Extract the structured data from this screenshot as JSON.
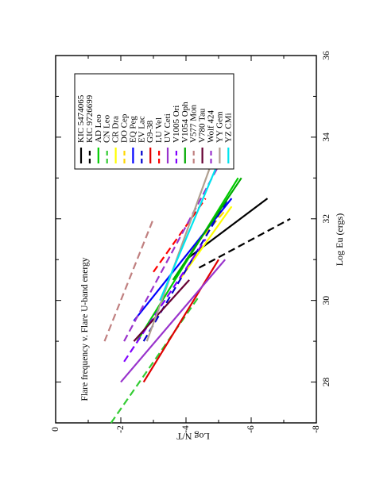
{
  "chart_data": {
    "type": "line",
    "title": "Flare frequency v. Flare U-band energy",
    "xlabel": "Log Eu (ergs)",
    "ylabel": "Log N/T",
    "xlim": [
      27,
      36
    ],
    "ylim": [
      -8,
      0
    ],
    "x_ticks": [
      "28",
      "30",
      "32",
      "34",
      "36"
    ],
    "y_ticks": [
      "0",
      "-2",
      "-4",
      "-6",
      "-8"
    ],
    "orientation": "rotated-90-ccw",
    "legend_position": "top-right",
    "grid": false,
    "series": [
      {
        "name": "KIC 5474065",
        "color": "#000000",
        "dash": "solid",
        "x": [
          31.0,
          32.5
        ],
        "y": [
          -4.0,
          -6.5
        ]
      },
      {
        "name": "KIC 9726699",
        "color": "#000000",
        "dash": "dashed",
        "x": [
          30.8,
          32.0
        ],
        "y": [
          -4.4,
          -7.2
        ]
      },
      {
        "name": "AD Leo",
        "color": "#00cc00",
        "dash": "solid",
        "x": [
          29.0,
          33.0
        ],
        "y": [
          -2.5,
          -5.6
        ]
      },
      {
        "name": "CN Leo",
        "color": "#33cc33",
        "dash": "dashed",
        "x": [
          27.0,
          30.1
        ],
        "y": [
          -1.7,
          -4.4
        ]
      },
      {
        "name": "CR Dra",
        "color": "#ffff00",
        "dash": "solid",
        "x": [
          30.5,
          32.3
        ],
        "y": [
          -3.8,
          -5.4
        ]
      },
      {
        "name": "DO Cep",
        "color": "#ffd700",
        "dash": "dashed",
        "x": [
          31.0,
          32.2
        ],
        "y": [
          -3.9,
          -5.2
        ]
      },
      {
        "name": "EQ Peg",
        "color": "#0000ff",
        "dash": "solid",
        "x": [
          29.5,
          32.5
        ],
        "y": [
          -2.4,
          -5.4
        ]
      },
      {
        "name": "EV Lac",
        "color": "#0000cc",
        "dash": "dashed",
        "x": [
          29.0,
          32.5
        ],
        "y": [
          -2.7,
          -5.3
        ]
      },
      {
        "name": "G9-38",
        "color": "#e00000",
        "dash": "solid",
        "x": [
          28.0,
          31.0
        ],
        "y": [
          -2.7,
          -5.0
        ]
      },
      {
        "name": "LU Vel",
        "color": "#ff0000",
        "dash": "dashed",
        "x": [
          30.7,
          32.5
        ],
        "y": [
          -3.0,
          -4.6
        ]
      },
      {
        "name": "UV Ceti",
        "color": "#9933cc",
        "dash": "solid",
        "x": [
          28.0,
          31.0
        ],
        "y": [
          -2.0,
          -5.2
        ]
      },
      {
        "name": "V1005 Ori",
        "color": "#8000ff",
        "dash": "dashed",
        "x": [
          28.5,
          31.5
        ],
        "y": [
          -2.1,
          -4.6
        ]
      },
      {
        "name": "V1054 Oph",
        "color": "#00aa00",
        "dash": "solid",
        "x": [
          30.5,
          33.0
        ],
        "y": [
          -3.6,
          -5.7
        ]
      },
      {
        "name": "V577 Mon",
        "color": "#c08080",
        "dash": "dashed",
        "x": [
          29.0,
          32.0
        ],
        "y": [
          -1.5,
          -3.0
        ]
      },
      {
        "name": "V780 Tau",
        "color": "#660033",
        "dash": "solid",
        "x": [
          29.0,
          30.5
        ],
        "y": [
          -2.4,
          -4.1
        ]
      },
      {
        "name": "Wolf 424",
        "color": "#9933cc",
        "dash": "dashed",
        "x": [
          29.0,
          33.3
        ],
        "y": [
          -2.1,
          -5.0
        ]
      },
      {
        "name": "YY Gem",
        "color": "#b0a090",
        "dash": "solid",
        "x": [
          29.0,
          33.4
        ],
        "y": [
          -2.8,
          -4.8
        ]
      },
      {
        "name": "YZ CMi",
        "color": "#00e5ee",
        "dash": "solid",
        "x": [
          30.0,
          33.4
        ],
        "y": [
          -3.2,
          -5.0
        ]
      }
    ]
  }
}
